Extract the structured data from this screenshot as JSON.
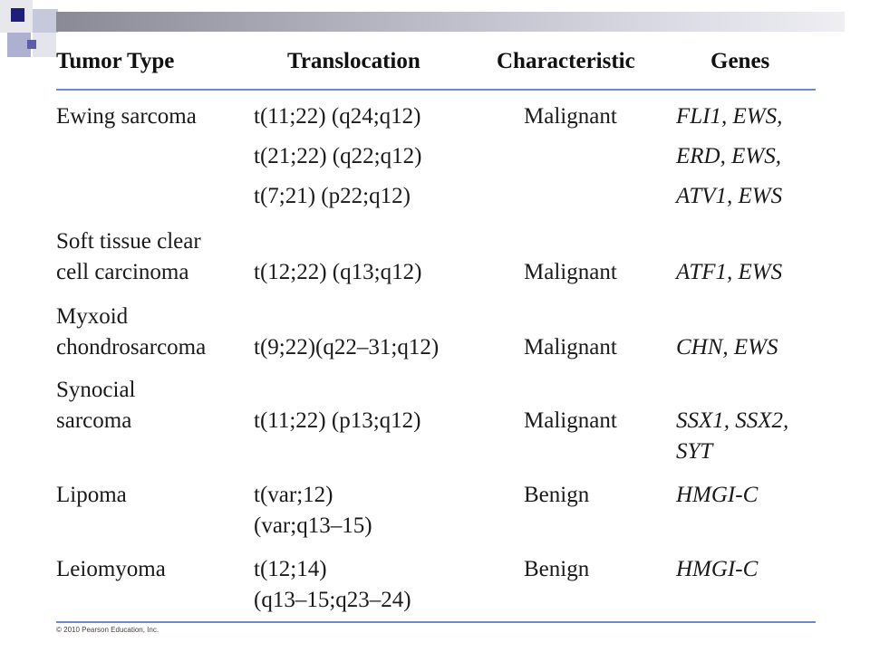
{
  "headers": {
    "tumor_type": "Tumor Type",
    "translocation": "Translocation",
    "characteristic": "Characteristic",
    "genes": "Genes"
  },
  "rows": {
    "ewing": {
      "tumor": "Ewing sarcoma",
      "transloc": [
        "t(11;22) (q24;q12)",
        "t(21;22) (q22;q12)",
        "t(7;21) (p22;q12)"
      ],
      "char": "Malignant",
      "genes": [
        "FLI1, EWS,",
        "ERD, EWS,",
        "ATV1, EWS"
      ]
    },
    "soft": {
      "tumor": [
        "Soft tissue clear",
        "cell carcinoma"
      ],
      "transloc": "t(12;22) (q13;q12)",
      "char": "Malignant",
      "genes": "ATF1, EWS"
    },
    "myxoid": {
      "tumor": [
        "Myxoid",
        "chondrosarcoma"
      ],
      "transloc": "t(9;22)(q22–31;q12)",
      "char": "Malignant",
      "genes": "CHN, EWS"
    },
    "synocial": {
      "tumor": [
        "Synocial",
        "sarcoma"
      ],
      "transloc": "t(11;22) (p13;q12)",
      "char": "Malignant",
      "genes": [
        "SSX1, SSX2,",
        "SYT"
      ]
    },
    "lipoma": {
      "tumor": "Lipoma",
      "transloc": [
        "t(var;12)",
        "(var;q13–15)"
      ],
      "char": "Benign",
      "genes": "HMGI-C"
    },
    "leiomyoma": {
      "tumor": "Leiomyoma",
      "transloc": [
        "t(12;14)",
        "(q13–15;q23–24)"
      ],
      "char": "Benign",
      "genes": "HMGI-C"
    }
  },
  "copyright": "© 2010 Pearson Education, Inc."
}
